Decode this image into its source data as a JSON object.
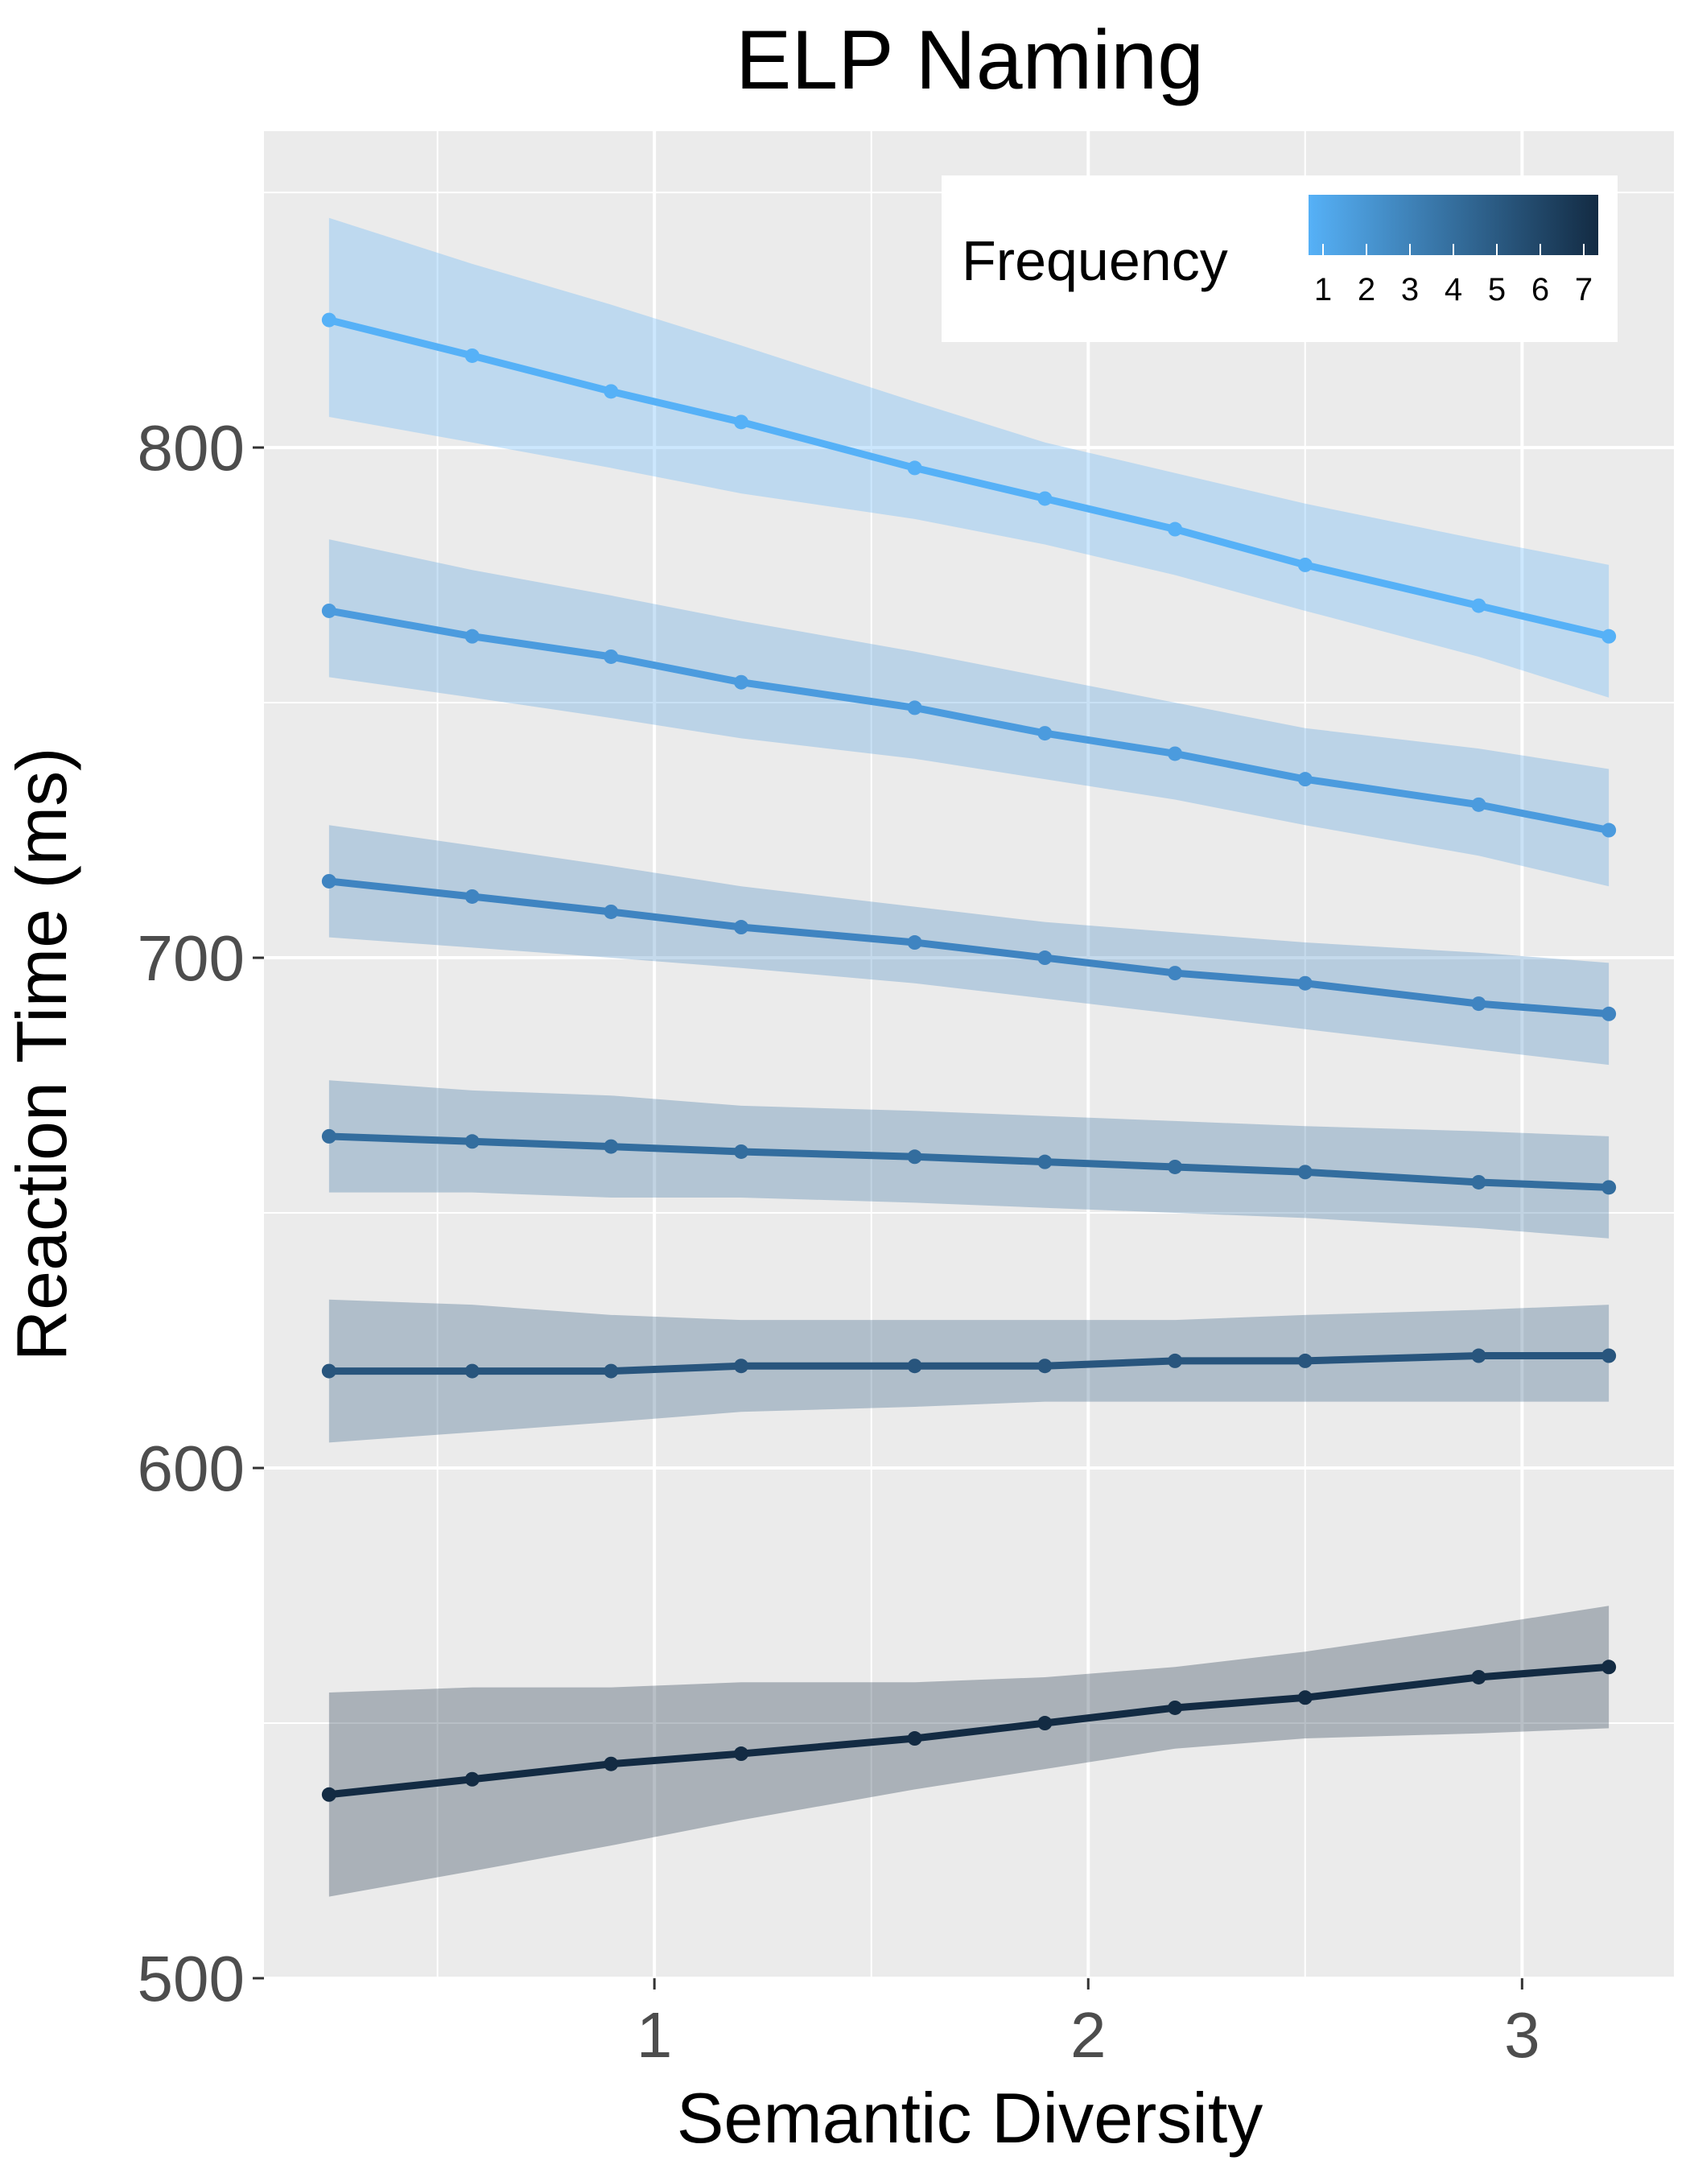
{
  "chart_data": {
    "type": "line",
    "title": "ELP Naming",
    "xlabel": "Semantic Diversity",
    "ylabel": "Reaction Time (ms)",
    "xlim": [
      0.1,
      3.35
    ],
    "ylim": [
      500,
      862
    ],
    "x_ticks": [
      "1",
      "2",
      "3"
    ],
    "y_ticks": [
      "500",
      "600",
      "700",
      "800"
    ],
    "grid": true,
    "legend": {
      "title": "Frequency",
      "type": "colorbar",
      "labels": [
        "1",
        "2",
        "3",
        "4",
        "5",
        "6",
        "7"
      ],
      "colors": [
        "#56B1F7",
        "#132B43"
      ],
      "placement": "top-right"
    },
    "x": [
      0.25,
      0.58,
      0.9,
      1.2,
      1.6,
      1.9,
      2.2,
      2.5,
      2.9,
      3.2
    ],
    "series": [
      {
        "color": "#56B1F7",
        "values": [
          825,
          818,
          811,
          805,
          796,
          790,
          784,
          777,
          769,
          763
        ],
        "lower": [
          806,
          801,
          796,
          791,
          786,
          781,
          775,
          768,
          759,
          751
        ],
        "upper": [
          845,
          836,
          828,
          820,
          809,
          801,
          795,
          789,
          782,
          777
        ]
      },
      {
        "color": "#4B9BDE",
        "values": [
          768,
          763,
          759,
          754,
          749,
          744,
          740,
          735,
          730,
          725
        ],
        "lower": [
          755,
          751,
          747,
          743,
          739,
          735,
          731,
          726,
          720,
          714
        ],
        "upper": [
          782,
          776,
          771,
          766,
          760,
          755,
          750,
          745,
          741,
          737
        ]
      },
      {
        "color": "#3F84C1",
        "values": [
          715,
          712,
          709,
          706,
          703,
          700,
          697,
          695,
          691,
          689
        ],
        "lower": [
          704,
          702,
          700,
          698,
          695,
          692,
          689,
          686,
          682,
          679
        ],
        "upper": [
          726,
          722,
          718,
          714,
          710,
          707,
          705,
          703,
          701,
          699
        ]
      },
      {
        "color": "#336D9E",
        "values": [
          665,
          664,
          663,
          662,
          661,
          660,
          659,
          658,
          656,
          655
        ],
        "lower": [
          654,
          654,
          653,
          653,
          652,
          651,
          650,
          649,
          647,
          645
        ],
        "upper": [
          676,
          674,
          673,
          671,
          670,
          669,
          668,
          667,
          666,
          665
        ]
      },
      {
        "color": "#28557D",
        "values": [
          619,
          619,
          619,
          620,
          620,
          620,
          621,
          621,
          622,
          622
        ],
        "lower": [
          605,
          607,
          609,
          611,
          612,
          613,
          613,
          613,
          613,
          613
        ],
        "upper": [
          633,
          632,
          630,
          629,
          629,
          629,
          629,
          630,
          631,
          632
        ]
      },
      {
        "color": "#132B43",
        "values": [
          536,
          539,
          542,
          544,
          547,
          550,
          553,
          555,
          559,
          561
        ],
        "lower": [
          516,
          521,
          526,
          531,
          537,
          541,
          545,
          547,
          548,
          549
        ],
        "upper": [
          556,
          557,
          557,
          558,
          558,
          559,
          561,
          564,
          569,
          573
        ]
      }
    ]
  }
}
